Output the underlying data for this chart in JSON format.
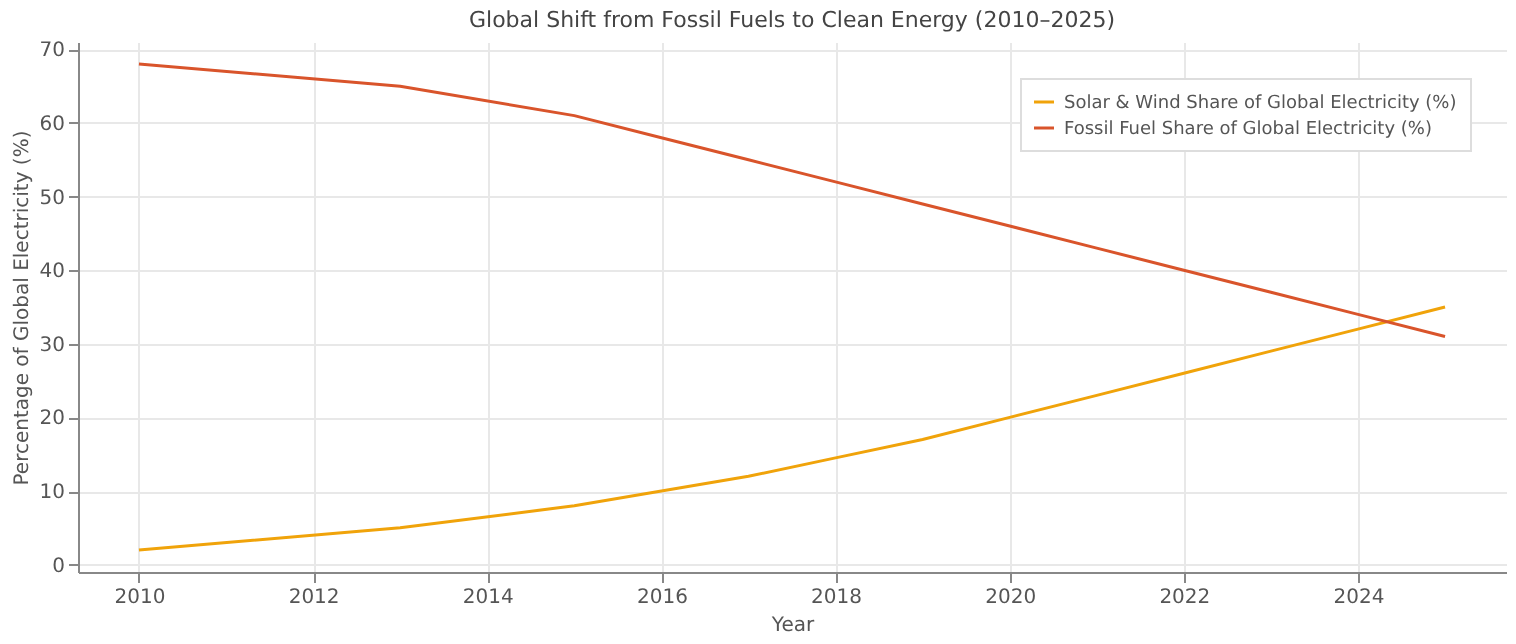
{
  "chart_data": {
    "type": "line",
    "title": "Global Shift from Fossil Fuels to Clean Energy (2010–2025)",
    "xlabel": "Year",
    "ylabel": "Percentage of Global Electricity (%)",
    "x": [
      2010,
      2013,
      2015,
      2016,
      2017,
      2018,
      2019,
      2020,
      2021,
      2022,
      2023,
      2024,
      2025
    ],
    "series": [
      {
        "name": "Solar & Wind Share of Global Electricity (%)",
        "color": "#f0a30a",
        "values": [
          2,
          5,
          8,
          10,
          12,
          14.5,
          17,
          20,
          23,
          26,
          29,
          32,
          35
        ]
      },
      {
        "name": "Fossil Fuel Share of Global Electricity (%)",
        "color": "#d9542b",
        "values": [
          68,
          65,
          61,
          58,
          55,
          52,
          49,
          46,
          43,
          40,
          37,
          34,
          31
        ]
      }
    ],
    "xlim": [
      2009.3,
      2025.7
    ],
    "xticks": [
      2010,
      2012,
      2014,
      2016,
      2018,
      2020,
      2022,
      2024
    ],
    "ylim": [
      -1,
      71
    ],
    "yticks": [
      0,
      10,
      20,
      30,
      40,
      50,
      60,
      70
    ],
    "grid": true,
    "legend": "top right",
    "line_style": "solid",
    "marker": "none"
  }
}
